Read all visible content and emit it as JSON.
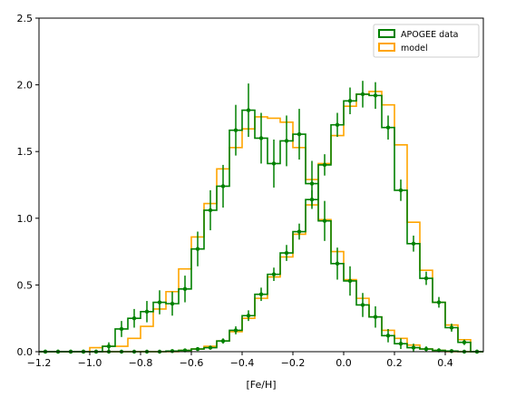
{
  "chart_data": {
    "type": "histogram",
    "xlabel": "[Fe/H]",
    "ylabel": "",
    "xlim": [
      -1.2,
      0.55
    ],
    "ylim": [
      0,
      2.5
    ],
    "xticks": [
      "-1.2",
      "-1.0",
      "-0.8",
      "-0.6",
      "-0.4",
      "-0.2",
      "0.0",
      "0.2",
      "0.4"
    ],
    "yticks": [
      "0.0",
      "0.5",
      "1.0",
      "1.5",
      "2.0",
      "2.5"
    ],
    "grid": false,
    "legend_position": "top-right",
    "bin_edges": [
      -1.2,
      -1.15,
      -1.1,
      -1.05,
      -1.0,
      -0.95,
      -0.9,
      -0.85,
      -0.8,
      -0.75,
      -0.7,
      -0.65,
      -0.6,
      -0.55,
      -0.5,
      -0.45,
      -0.4,
      -0.35,
      -0.3,
      -0.25,
      -0.2,
      -0.15,
      -0.1,
      -0.05,
      0.0,
      0.05,
      0.1,
      0.15,
      0.2,
      0.25,
      0.3,
      0.35,
      0.4,
      0.45,
      0.5,
      0.55
    ],
    "series": [
      {
        "name": "APOGEE data",
        "color": "#008000",
        "values": [
          0,
          0,
          0,
          0,
          0,
          0.04,
          0.17,
          0.25,
          0.3,
          0.37,
          0.36,
          0.47,
          0.77,
          1.06,
          1.24,
          1.66,
          1.81,
          1.6,
          1.41,
          1.58,
          1.63,
          1.26,
          0.98,
          0.66,
          0.53,
          0.35,
          0.26,
          0.12,
          0.06,
          0.03,
          0.02,
          0.01,
          0.005,
          0,
          0
        ],
        "errors": [
          0,
          0,
          0,
          0,
          0,
          0.03,
          0.06,
          0.07,
          0.08,
          0.09,
          0.09,
          0.1,
          0.13,
          0.15,
          0.16,
          0.19,
          0.2,
          0.19,
          0.18,
          0.19,
          0.19,
          0.17,
          0.15,
          0.12,
          0.11,
          0.09,
          0.08,
          0.05,
          0.04,
          0.03,
          0.02,
          0.015,
          0.01,
          0,
          0
        ]
      },
      {
        "name": "APOGEE data",
        "color": "#008000",
        "values": [
          0,
          0,
          0,
          0,
          0,
          0,
          0,
          0,
          0,
          0,
          0.005,
          0.01,
          0.02,
          0.03,
          0.08,
          0.16,
          0.27,
          0.43,
          0.58,
          0.74,
          0.9,
          1.14,
          1.4,
          1.7,
          1.88,
          1.93,
          1.92,
          1.68,
          1.21,
          0.81,
          0.55,
          0.37,
          0.18,
          0.07,
          0
        ],
        "errors": [
          0,
          0,
          0,
          0,
          0,
          0,
          0,
          0,
          0,
          0,
          0.005,
          0.008,
          0.01,
          0.015,
          0.02,
          0.03,
          0.04,
          0.05,
          0.05,
          0.06,
          0.06,
          0.07,
          0.08,
          0.09,
          0.1,
          0.1,
          0.1,
          0.09,
          0.08,
          0.06,
          0.05,
          0.04,
          0.03,
          0.02,
          0
        ]
      },
      {
        "name": "model",
        "color": "#ffa500",
        "values": [
          0,
          0,
          0,
          0,
          0.03,
          0.04,
          0.04,
          0.1,
          0.19,
          0.32,
          0.45,
          0.62,
          0.86,
          1.11,
          1.37,
          1.53,
          1.67,
          1.76,
          1.75,
          1.72,
          1.53,
          1.29,
          0.99,
          0.75,
          0.54,
          0.4,
          0.26,
          0.16,
          0.1,
          0.05,
          0.02,
          0.01,
          0,
          0,
          0
        ]
      },
      {
        "name": "model",
        "color": "#ffa500",
        "values": [
          0,
          0,
          0,
          0,
          0,
          0,
          0,
          0,
          0,
          0,
          0,
          0.01,
          0.02,
          0.04,
          0.08,
          0.15,
          0.25,
          0.4,
          0.56,
          0.71,
          0.88,
          1.1,
          1.41,
          1.62,
          1.84,
          1.93,
          1.95,
          1.85,
          1.55,
          0.97,
          0.61,
          0.37,
          0.2,
          0.09,
          0
        ]
      }
    ],
    "legend": [
      {
        "label": "APOGEE data",
        "color": "#008000"
      },
      {
        "label": "model",
        "color": "#ffa500"
      }
    ]
  }
}
